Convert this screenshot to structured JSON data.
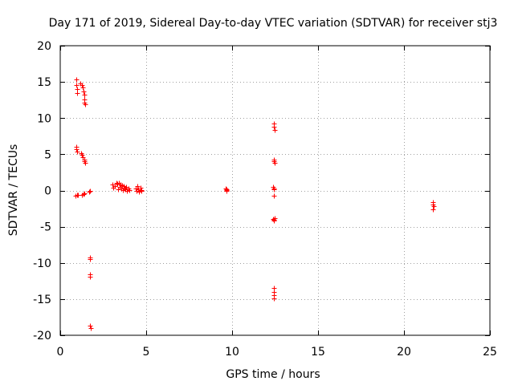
{
  "chart_data": {
    "type": "scatter",
    "title": "Day 171 of 2019, Sidereal Day-to-day VTEC variation (SDTVAR) for receiver stj3",
    "xlabel": "GPS time / hours",
    "ylabel": "SDTVAR / TECUs",
    "xlim": [
      0,
      25
    ],
    "ylim": [
      -20,
      20
    ],
    "xticks": [
      0,
      5,
      10,
      15,
      20,
      25
    ],
    "yticks": [
      -20,
      -15,
      -10,
      -5,
      0,
      5,
      10,
      15,
      20
    ],
    "xtick_labels": [
      "0",
      "5",
      "10",
      "15",
      "20",
      "25"
    ],
    "ytick_labels": [
      "-20",
      "-15",
      "-10",
      "-5",
      "0",
      "5",
      "10",
      "15",
      "20"
    ],
    "grid": true,
    "marker": "plus",
    "marker_color": "#ff0000",
    "series": [
      {
        "name": "SDTVAR",
        "points": [
          [
            0.93,
            15.4
          ],
          [
            0.95,
            14.6
          ],
          [
            0.97,
            14.0
          ],
          [
            0.99,
            13.5
          ],
          [
            1.18,
            14.8
          ],
          [
            1.25,
            14.6
          ],
          [
            1.3,
            14.2
          ],
          [
            1.35,
            13.7
          ],
          [
            1.38,
            13.2
          ],
          [
            1.4,
            12.6
          ],
          [
            1.42,
            12.1
          ],
          [
            1.44,
            11.9
          ],
          [
            0.92,
            6.0
          ],
          [
            0.95,
            5.7
          ],
          [
            0.98,
            5.4
          ],
          [
            1.2,
            5.2
          ],
          [
            1.28,
            4.9
          ],
          [
            1.33,
            4.6
          ],
          [
            1.38,
            4.3
          ],
          [
            1.42,
            4.0
          ],
          [
            1.45,
            3.8
          ],
          [
            0.9,
            -0.7
          ],
          [
            1.0,
            -0.6
          ],
          [
            1.05,
            -0.6
          ],
          [
            1.25,
            -0.6
          ],
          [
            1.35,
            -0.5
          ],
          [
            1.38,
            -0.4
          ],
          [
            1.7,
            -0.2
          ],
          [
            1.75,
            -0.1
          ],
          [
            1.72,
            -9.3
          ],
          [
            1.74,
            -9.5
          ],
          [
            1.72,
            -11.6
          ],
          [
            1.75,
            -11.9
          ],
          [
            1.73,
            -18.7
          ],
          [
            1.76,
            -19.0
          ],
          [
            3.05,
            0.8
          ],
          [
            3.1,
            0.4
          ],
          [
            3.2,
            0.6
          ],
          [
            3.25,
            1.1
          ],
          [
            3.3,
            0.9
          ],
          [
            3.35,
            0.2
          ],
          [
            3.4,
            1.0
          ],
          [
            3.45,
            0.5
          ],
          [
            3.5,
            0.8
          ],
          [
            3.55,
            0.3
          ],
          [
            3.6,
            0.7
          ],
          [
            3.65,
            0.1
          ],
          [
            3.7,
            0.6
          ],
          [
            3.75,
            0.4
          ],
          [
            3.8,
            0.2
          ],
          [
            3.85,
            0.5
          ],
          [
            3.9,
            0.0
          ],
          [
            3.95,
            0.3
          ],
          [
            4.0,
            0.1
          ],
          [
            4.4,
            0.3
          ],
          [
            4.45,
            -0.1
          ],
          [
            4.5,
            0.6
          ],
          [
            4.55,
            0.2
          ],
          [
            4.6,
            -0.2
          ],
          [
            4.65,
            0.4
          ],
          [
            4.7,
            0.0
          ],
          [
            4.72,
            0.1
          ],
          [
            9.62,
            0.3
          ],
          [
            9.65,
            0.1
          ],
          [
            9.68,
            0.2
          ],
          [
            9.66,
            0.0
          ],
          [
            12.42,
            9.3
          ],
          [
            12.45,
            8.8
          ],
          [
            12.48,
            8.4
          ],
          [
            12.42,
            4.3
          ],
          [
            12.45,
            4.0
          ],
          [
            12.48,
            3.8
          ],
          [
            12.38,
            0.5
          ],
          [
            12.42,
            0.3
          ],
          [
            12.45,
            0.2
          ],
          [
            12.42,
            -0.7
          ],
          [
            12.38,
            -3.9
          ],
          [
            12.42,
            -4.2
          ],
          [
            12.45,
            -4.0
          ],
          [
            12.48,
            -3.8
          ],
          [
            12.45,
            -13.5
          ],
          [
            12.42,
            -14.0
          ],
          [
            12.44,
            -14.5
          ],
          [
            12.43,
            -14.9
          ],
          [
            21.68,
            -1.6
          ],
          [
            21.7,
            -1.9
          ],
          [
            21.72,
            -2.2
          ],
          [
            21.69,
            -2.6
          ]
        ]
      }
    ]
  }
}
